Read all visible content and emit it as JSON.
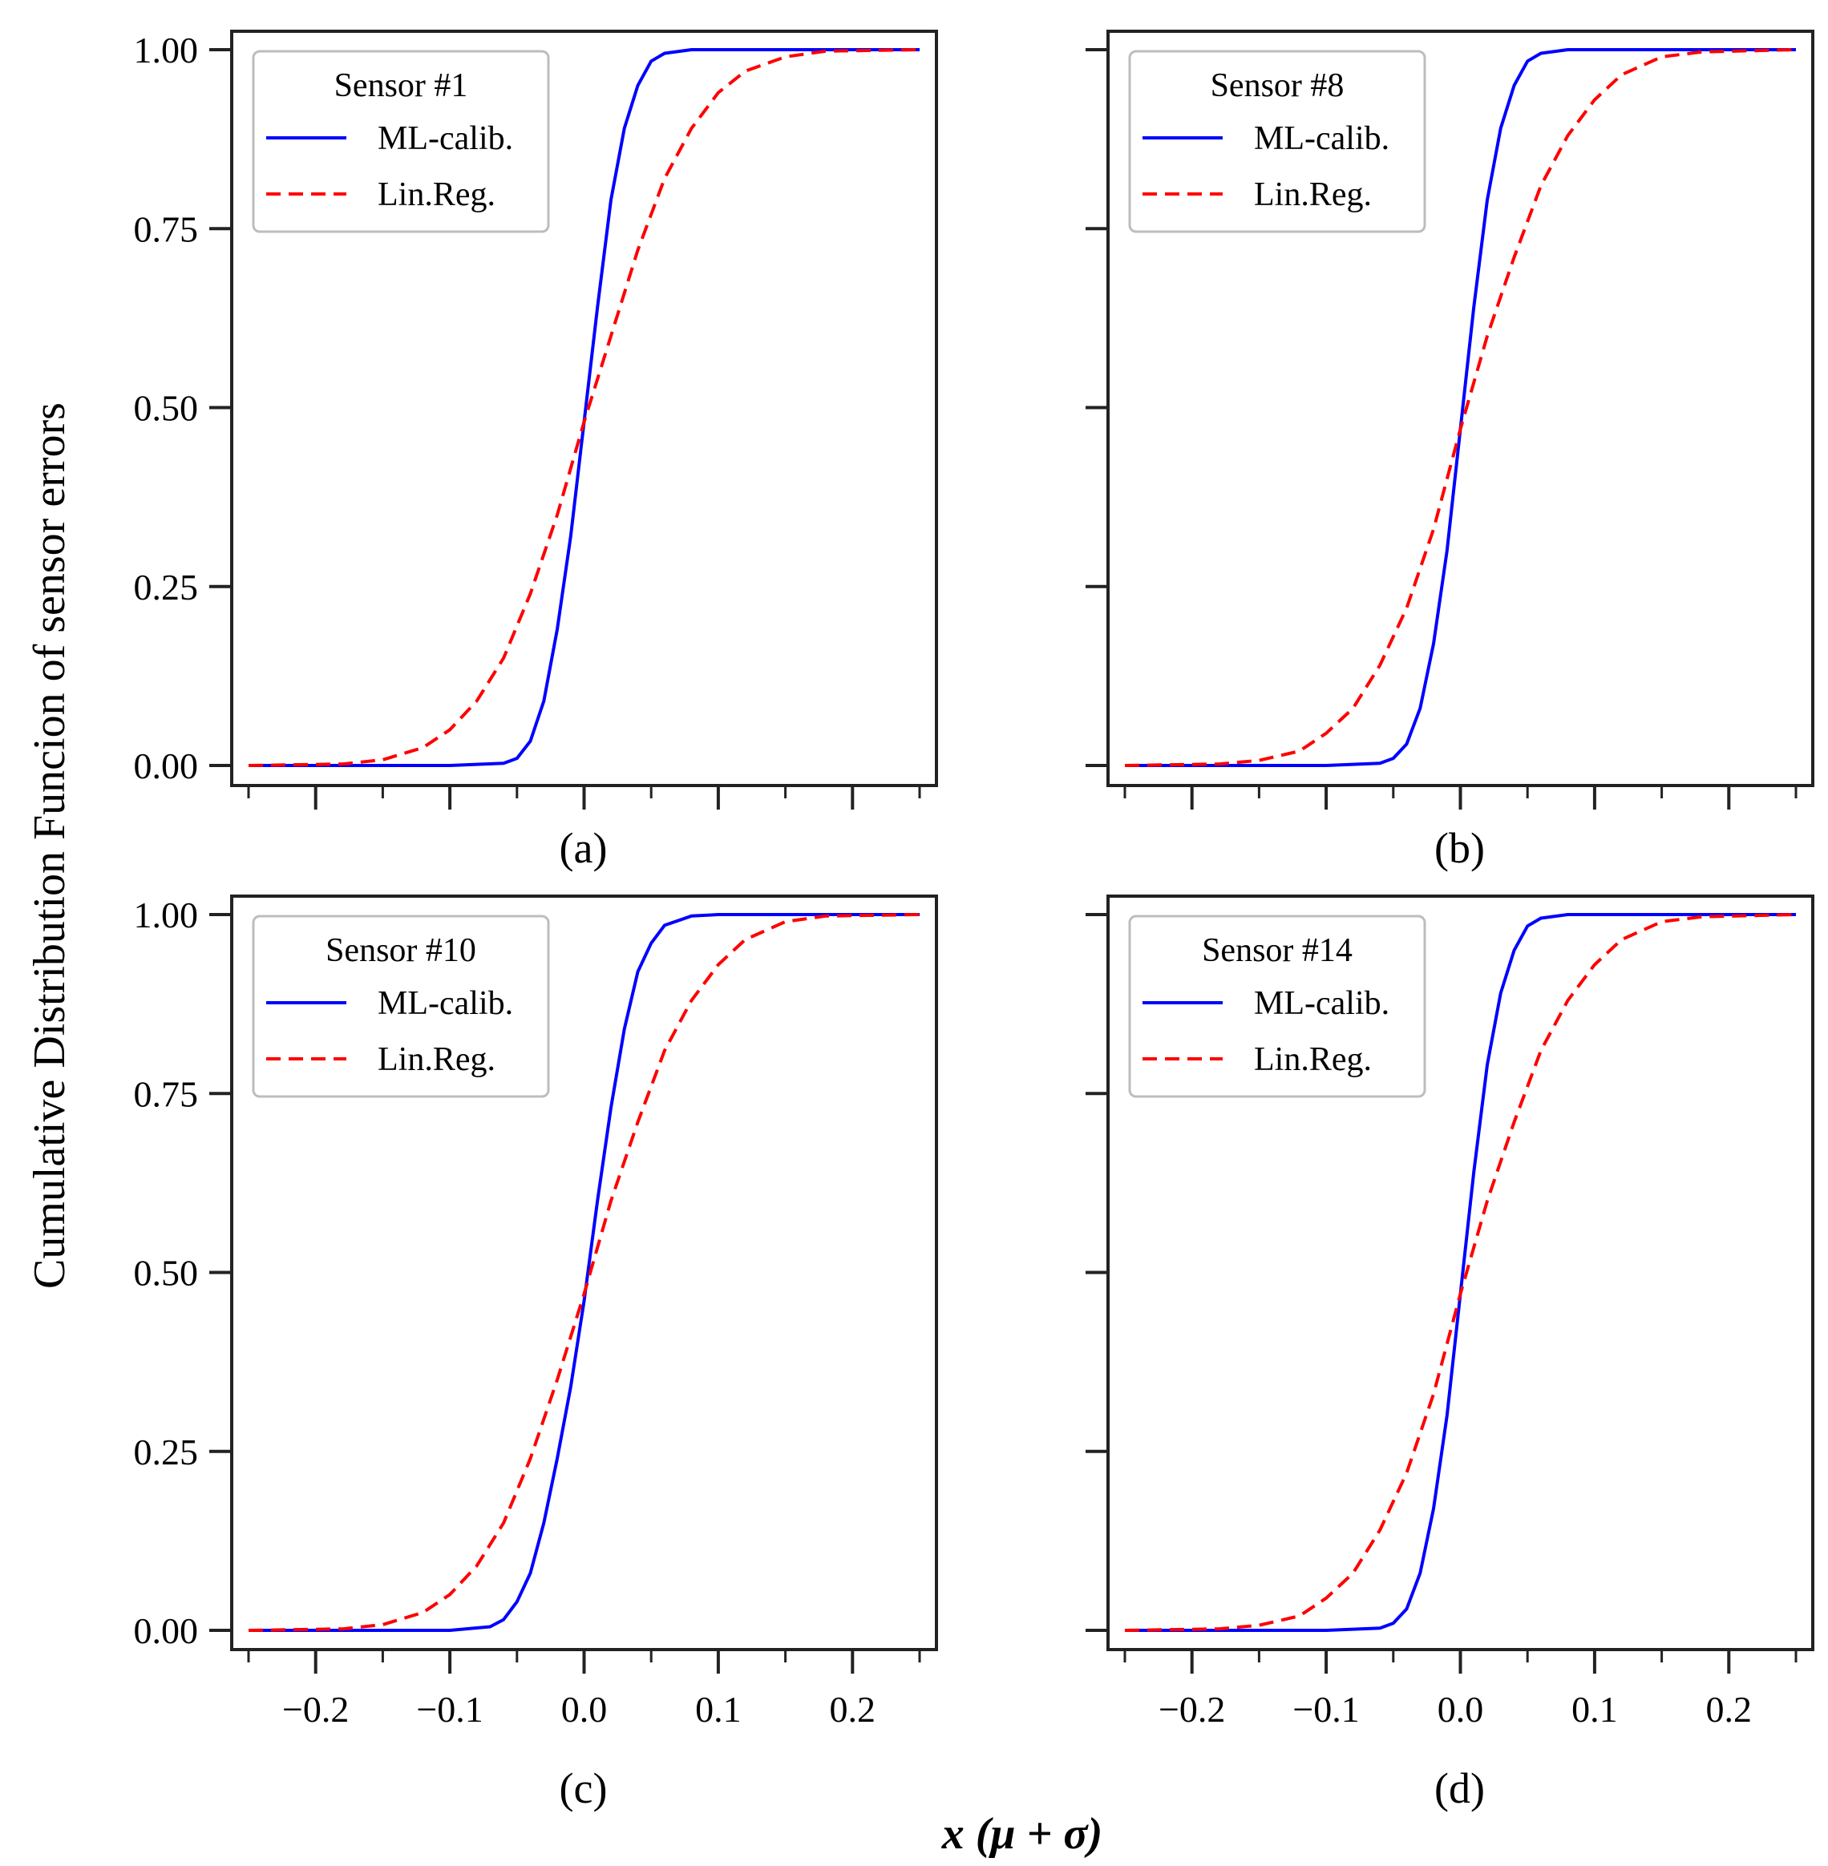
{
  "chart_data": {
    "type": "line",
    "title": "",
    "ylabel": "Cumulative Distribution Funcion of sensor errors",
    "xlabel": "x (μ + σ)",
    "xlim": [
      -0.25,
      0.25
    ],
    "ylim": [
      0,
      1
    ],
    "xticks": [
      -0.2,
      -0.1,
      0.0,
      0.1,
      0.2
    ],
    "xtick_labels": [
      "−0.2",
      "−0.1",
      "0.0",
      "0.1",
      "0.2"
    ],
    "yticks": [
      0,
      0.25,
      0.5,
      0.75,
      1.0
    ],
    "ytick_labels": [
      "0.00",
      "0.25",
      "0.50",
      "0.75",
      "1.00"
    ],
    "grid": false,
    "legend_position": "top-left",
    "series_styles": {
      "ML-calib.": {
        "color": "#0000ff",
        "dash": "solid"
      },
      "Lin.Reg.": {
        "color": "#ff0000",
        "dash": "dashed"
      }
    },
    "panels": [
      {
        "label": "(a)",
        "legend_title": "Sensor #1",
        "series": [
          {
            "name": "ML-calib.",
            "x": [
              -0.25,
              -0.1,
              -0.06,
              -0.05,
              -0.04,
              -0.03,
              -0.02,
              -0.01,
              0.0,
              0.01,
              0.02,
              0.03,
              0.04,
              0.05,
              0.06,
              0.08,
              0.25
            ],
            "y": [
              0.0,
              0.0,
              0.003,
              0.01,
              0.034,
              0.09,
              0.19,
              0.32,
              0.48,
              0.64,
              0.79,
              0.89,
              0.95,
              0.984,
              0.995,
              1.0,
              1.0
            ]
          },
          {
            "name": "Lin.Reg.",
            "x": [
              -0.25,
              -0.18,
              -0.15,
              -0.12,
              -0.1,
              -0.08,
              -0.06,
              -0.04,
              -0.02,
              0.0,
              0.02,
              0.04,
              0.06,
              0.08,
              0.1,
              0.12,
              0.15,
              0.18,
              0.25
            ],
            "y": [
              0.0,
              0.002,
              0.008,
              0.025,
              0.05,
              0.09,
              0.15,
              0.24,
              0.35,
              0.48,
              0.6,
              0.72,
              0.82,
              0.89,
              0.94,
              0.97,
              0.99,
              0.998,
              1.0
            ]
          }
        ]
      },
      {
        "label": "(b)",
        "legend_title": "Sensor #8",
        "series": [
          {
            "name": "ML-calib.",
            "x": [
              -0.25,
              -0.1,
              -0.06,
              -0.05,
              -0.04,
              -0.03,
              -0.02,
              -0.01,
              0.0,
              0.01,
              0.02,
              0.03,
              0.04,
              0.05,
              0.06,
              0.08,
              0.25
            ],
            "y": [
              0.0,
              0.0,
              0.003,
              0.01,
              0.03,
              0.08,
              0.17,
              0.3,
              0.47,
              0.64,
              0.79,
              0.89,
              0.95,
              0.984,
              0.995,
              1.0,
              1.0
            ]
          },
          {
            "name": "Lin.Reg.",
            "x": [
              -0.25,
              -0.18,
              -0.15,
              -0.12,
              -0.1,
              -0.08,
              -0.06,
              -0.04,
              -0.02,
              0.0,
              0.02,
              0.04,
              0.06,
              0.08,
              0.1,
              0.12,
              0.15,
              0.18,
              0.25
            ],
            "y": [
              0.0,
              0.002,
              0.007,
              0.02,
              0.045,
              0.08,
              0.14,
              0.22,
              0.33,
              0.47,
              0.6,
              0.71,
              0.81,
              0.88,
              0.93,
              0.965,
              0.99,
              0.997,
              1.0
            ]
          }
        ]
      },
      {
        "label": "(c)",
        "legend_title": "Sensor #10",
        "series": [
          {
            "name": "ML-calib.",
            "x": [
              -0.25,
              -0.1,
              -0.07,
              -0.06,
              -0.05,
              -0.04,
              -0.03,
              -0.02,
              -0.01,
              0.0,
              0.01,
              0.02,
              0.03,
              0.04,
              0.05,
              0.06,
              0.08,
              0.1,
              0.25
            ],
            "y": [
              0.0,
              0.0,
              0.005,
              0.015,
              0.04,
              0.08,
              0.15,
              0.24,
              0.34,
              0.46,
              0.6,
              0.73,
              0.84,
              0.92,
              0.96,
              0.985,
              0.998,
              1.0,
              1.0
            ]
          },
          {
            "name": "Lin.Reg.",
            "x": [
              -0.25,
              -0.18,
              -0.15,
              -0.12,
              -0.1,
              -0.08,
              -0.06,
              -0.04,
              -0.02,
              0.0,
              0.02,
              0.04,
              0.06,
              0.08,
              0.1,
              0.12,
              0.15,
              0.18,
              0.25
            ],
            "y": [
              0.0,
              0.002,
              0.008,
              0.025,
              0.05,
              0.09,
              0.15,
              0.24,
              0.35,
              0.47,
              0.6,
              0.71,
              0.81,
              0.88,
              0.93,
              0.965,
              0.99,
              0.998,
              1.0
            ]
          }
        ]
      },
      {
        "label": "(d)",
        "legend_title": "Sensor #14",
        "series": [
          {
            "name": "ML-calib.",
            "x": [
              -0.25,
              -0.1,
              -0.06,
              -0.05,
              -0.04,
              -0.03,
              -0.02,
              -0.01,
              0.0,
              0.01,
              0.02,
              0.03,
              0.04,
              0.05,
              0.06,
              0.08,
              0.25
            ],
            "y": [
              0.0,
              0.0,
              0.003,
              0.01,
              0.03,
              0.08,
              0.17,
              0.3,
              0.47,
              0.64,
              0.79,
              0.89,
              0.95,
              0.984,
              0.995,
              1.0,
              1.0
            ]
          },
          {
            "name": "Lin.Reg.",
            "x": [
              -0.25,
              -0.18,
              -0.15,
              -0.12,
              -0.1,
              -0.08,
              -0.06,
              -0.04,
              -0.02,
              0.0,
              0.02,
              0.04,
              0.06,
              0.08,
              0.1,
              0.12,
              0.15,
              0.18,
              0.25
            ],
            "y": [
              0.0,
              0.002,
              0.007,
              0.02,
              0.045,
              0.08,
              0.14,
              0.22,
              0.33,
              0.47,
              0.6,
              0.71,
              0.81,
              0.88,
              0.93,
              0.965,
              0.99,
              0.997,
              1.0
            ]
          }
        ]
      }
    ]
  }
}
